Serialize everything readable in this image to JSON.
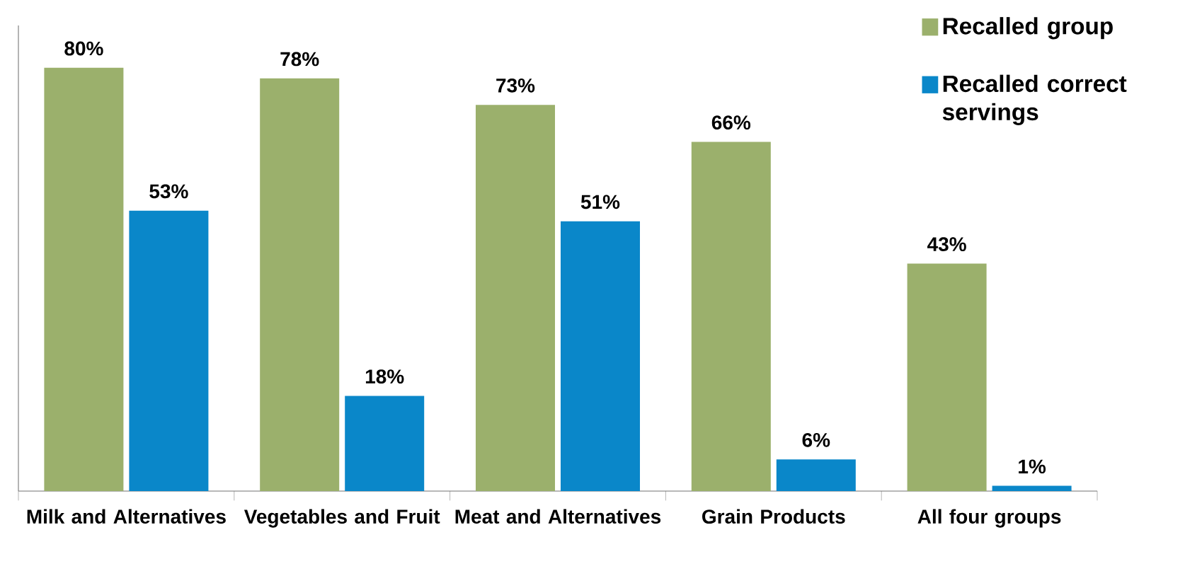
{
  "chart_data": {
    "type": "bar",
    "categories": [
      "Milk and Alternatives",
      "Vegetables and Fruit",
      "Meat and Alternatives",
      "Grain Products",
      "All four groups"
    ],
    "series": [
      {
        "name": "Recalled group",
        "color": "#9bb06c",
        "values": [
          80,
          78,
          73,
          66,
          43
        ],
        "value_labels": [
          "80%",
          "78%",
          "73%",
          "66%",
          "43%"
        ]
      },
      {
        "name": "Recalled correct servings",
        "color": "#0a87c9",
        "values": [
          53,
          18,
          51,
          6,
          1
        ],
        "value_labels": [
          "53%",
          "18%",
          "51%",
          "6%",
          "1%"
        ]
      }
    ],
    "ylim": [
      0,
      88
    ],
    "legend": "top right"
  }
}
